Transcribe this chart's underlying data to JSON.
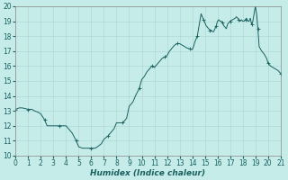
{
  "title": "",
  "xlabel": "Humidex (Indice chaleur)",
  "xlim": [
    0,
    21
  ],
  "ylim": [
    10,
    20
  ],
  "yticks": [
    10,
    11,
    12,
    13,
    14,
    15,
    16,
    17,
    18,
    19,
    20
  ],
  "xticks": [
    0,
    1,
    2,
    3,
    4,
    5,
    6,
    7,
    8,
    9,
    10,
    11,
    12,
    13,
    14,
    15,
    16,
    17,
    18,
    19,
    20,
    21
  ],
  "bg_color": "#c5ece8",
  "line_color": "#1a6060",
  "grid_color": "#b0d8d4",
  "x": [
    0.0,
    0.15,
    0.3,
    0.5,
    0.8,
    1.0,
    1.3,
    1.5,
    1.8,
    2.0,
    2.3,
    2.5,
    2.8,
    3.0,
    3.3,
    3.5,
    3.8,
    4.0,
    4.3,
    4.5,
    4.8,
    5.0,
    5.3,
    5.5,
    5.8,
    6.0,
    6.3,
    6.5,
    6.8,
    7.0,
    7.3,
    7.5,
    7.8,
    8.0,
    8.3,
    8.5,
    8.8,
    9.0,
    9.3,
    9.5,
    9.8,
    10.0,
    10.2,
    10.4,
    10.6,
    10.8,
    11.0,
    11.2,
    11.4,
    11.6,
    11.8,
    12.0,
    12.2,
    12.4,
    12.6,
    12.8,
    13.0,
    13.2,
    13.4,
    13.6,
    13.8,
    14.0,
    14.1,
    14.2,
    14.3,
    14.4,
    14.5,
    14.6,
    14.7,
    14.8,
    14.9,
    15.0,
    15.1,
    15.2,
    15.3,
    15.4,
    15.5,
    15.6,
    15.7,
    15.8,
    15.9,
    16.0,
    16.1,
    16.2,
    16.3,
    16.4,
    16.5,
    16.6,
    16.7,
    16.8,
    17.0,
    17.2,
    17.4,
    17.5,
    17.6,
    17.7,
    17.8,
    17.9,
    18.0,
    18.1,
    18.2,
    18.3,
    18.4,
    18.5,
    18.6,
    18.7,
    18.8,
    18.9,
    19.0,
    19.1,
    19.2,
    19.3,
    19.5,
    19.7,
    19.9,
    20.0,
    20.2,
    20.4,
    20.6,
    20.8,
    21.0
  ],
  "y": [
    13.1,
    13.15,
    13.2,
    13.2,
    13.15,
    13.1,
    13.1,
    13.0,
    12.9,
    12.8,
    12.4,
    12.0,
    12.0,
    12.0,
    12.0,
    12.0,
    12.0,
    12.0,
    11.7,
    11.5,
    11.0,
    10.6,
    10.5,
    10.5,
    10.5,
    10.5,
    10.5,
    10.6,
    10.8,
    11.1,
    11.3,
    11.5,
    11.8,
    12.2,
    12.2,
    12.2,
    12.5,
    13.3,
    13.6,
    14.0,
    14.5,
    15.1,
    15.3,
    15.6,
    15.8,
    16.0,
    15.9,
    16.1,
    16.3,
    16.5,
    16.6,
    16.7,
    17.0,
    17.2,
    17.4,
    17.5,
    17.5,
    17.4,
    17.3,
    17.2,
    17.15,
    17.1,
    17.3,
    17.6,
    17.8,
    18.0,
    18.5,
    19.0,
    19.5,
    19.3,
    19.1,
    18.9,
    18.7,
    18.6,
    18.5,
    18.4,
    18.4,
    18.3,
    18.3,
    18.5,
    18.7,
    19.0,
    19.1,
    19.0,
    19.0,
    18.9,
    18.7,
    18.6,
    18.5,
    18.8,
    19.0,
    19.1,
    19.2,
    19.3,
    19.2,
    19.1,
    19.0,
    19.1,
    19.0,
    19.0,
    19.1,
    19.2,
    19.0,
    19.0,
    19.2,
    18.8,
    19.0,
    19.5,
    20.0,
    19.5,
    18.5,
    17.3,
    17.0,
    16.8,
    16.5,
    16.2,
    16.0,
    15.9,
    15.8,
    15.7,
    15.5
  ]
}
